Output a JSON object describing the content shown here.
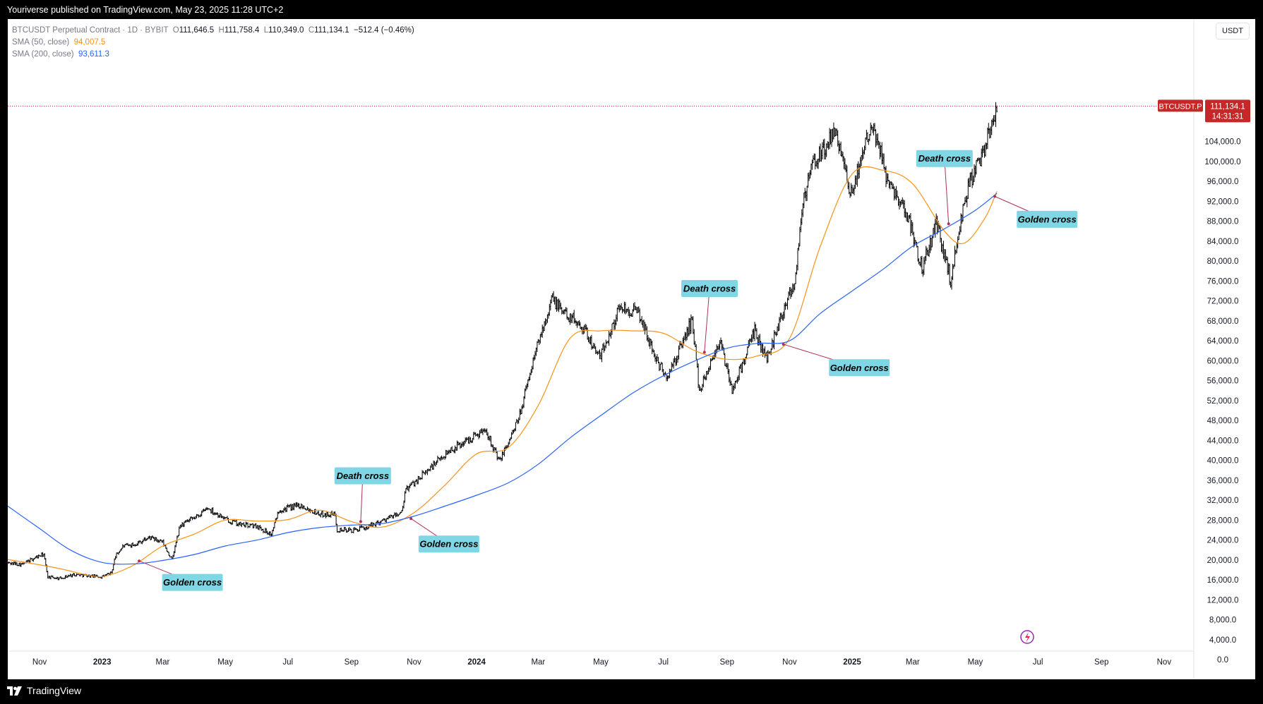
{
  "header": {
    "published": "Youriverse published on TradingView.com, May 23, 2025 11:28 UTC+2"
  },
  "footer": {
    "brand": "TradingView"
  },
  "legend": {
    "symbol": "BTCUSDT Perpetual Contract · 1D · BYBIT",
    "o_label": "O",
    "o": "111,646.5",
    "h_label": "H",
    "h": "111,758.4",
    "l_label": "L",
    "l": "110,349.0",
    "c_label": "C",
    "c": "111,134.1",
    "change": "−512.4 (−0.46%)",
    "sma50_label": "SMA (50, close)",
    "sma50": "94,007.5",
    "sma200_label": "SMA (200, close)",
    "sma200": "93,611.3"
  },
  "currency": "USDT",
  "price_tag": {
    "symbol": "BTCUSDT.P",
    "price": "111,134.1",
    "countdown": "14:31:31"
  },
  "colors": {
    "background": "#ffffff",
    "sma50": "#f7931a",
    "sma200": "#2962ff",
    "candles": "#000000",
    "annotation_box": "#7fd6e4",
    "annotation_line": "#b0305a",
    "price_tag": "#c62828"
  },
  "chart_data": {
    "type": "line",
    "title": "",
    "ylim": [
      0,
      116000
    ],
    "y_ticks": [
      0,
      4000,
      8000,
      12000,
      16000,
      20000,
      24000,
      28000,
      32000,
      36000,
      40000,
      44000,
      48000,
      52000,
      56000,
      60000,
      64000,
      68000,
      72000,
      76000,
      80000,
      84000,
      88000,
      92000,
      96000,
      100000,
      104000
    ],
    "y_tick_labels": [
      "0.0",
      "4,000.0",
      "8,000.0",
      "12,000.0",
      "16,000.0",
      "20,000.0",
      "24,000.0",
      "28,000.0",
      "32,000.0",
      "36,000.0",
      "40,000.0",
      "44,000.0",
      "48,000.0",
      "52,000.0",
      "56,000.0",
      "60,000.0",
      "64,000.0",
      "68,000.0",
      "72,000.0",
      "76,000.0",
      "80,000.0",
      "84,000.0",
      "88,000.0",
      "92,000.0",
      "96,000.0",
      "100,000.0",
      "104,000.0"
    ],
    "xlim": [
      "2022-10-01",
      "2025-11-30"
    ],
    "x_ticks": [
      {
        "date": "2022-11-01",
        "label": "Nov",
        "bold": false
      },
      {
        "date": "2023-01-01",
        "label": "2023",
        "bold": true
      },
      {
        "date": "2023-03-01",
        "label": "Mar",
        "bold": false
      },
      {
        "date": "2023-05-01",
        "label": "May",
        "bold": false
      },
      {
        "date": "2023-07-01",
        "label": "Jul",
        "bold": false
      },
      {
        "date": "2023-09-01",
        "label": "Sep",
        "bold": false
      },
      {
        "date": "2023-11-01",
        "label": "Nov",
        "bold": false
      },
      {
        "date": "2024-01-01",
        "label": "2024",
        "bold": true
      },
      {
        "date": "2024-03-01",
        "label": "Mar",
        "bold": false
      },
      {
        "date": "2024-05-01",
        "label": "May",
        "bold": false
      },
      {
        "date": "2024-07-01",
        "label": "Jul",
        "bold": false
      },
      {
        "date": "2024-09-01",
        "label": "Sep",
        "bold": false
      },
      {
        "date": "2024-11-01",
        "label": "Nov",
        "bold": false
      },
      {
        "date": "2025-01-01",
        "label": "2025",
        "bold": true
      },
      {
        "date": "2025-03-01",
        "label": "Mar",
        "bold": false
      },
      {
        "date": "2025-05-01",
        "label": "May",
        "bold": false
      },
      {
        "date": "2025-07-01",
        "label": "Jul",
        "bold": false
      },
      {
        "date": "2025-09-01",
        "label": "Sep",
        "bold": false
      },
      {
        "date": "2025-11-01",
        "label": "Nov",
        "bold": false
      }
    ],
    "series": [
      {
        "name": "BTCUSDT Perpetual Contract",
        "style": "ohlc-bars",
        "points": [
          [
            "2022-10-01",
            19400
          ],
          [
            "2022-10-15",
            19100
          ],
          [
            "2022-10-29",
            20600
          ],
          [
            "2022-11-05",
            21100
          ],
          [
            "2022-11-09",
            16600
          ],
          [
            "2022-11-20",
            16300
          ],
          [
            "2022-12-05",
            17100
          ],
          [
            "2022-12-20",
            16800
          ],
          [
            "2023-01-01",
            16600
          ],
          [
            "2023-01-10",
            17400
          ],
          [
            "2023-01-14",
            20800
          ],
          [
            "2023-01-21",
            22700
          ],
          [
            "2023-02-01",
            23100
          ],
          [
            "2023-02-16",
            24500
          ],
          [
            "2023-03-01",
            23500
          ],
          [
            "2023-03-10",
            20000
          ],
          [
            "2023-03-18",
            26900
          ],
          [
            "2023-04-01",
            28400
          ],
          [
            "2023-04-14",
            30400
          ],
          [
            "2023-05-01",
            28200
          ],
          [
            "2023-05-15",
            27100
          ],
          [
            "2023-06-01",
            26800
          ],
          [
            "2023-06-15",
            25100
          ],
          [
            "2023-06-22",
            30000
          ],
          [
            "2023-07-13",
            31000
          ],
          [
            "2023-08-01",
            29200
          ],
          [
            "2023-08-16",
            29100
          ],
          [
            "2023-08-18",
            26100
          ],
          [
            "2023-09-01",
            25900
          ],
          [
            "2023-09-15",
            26500
          ],
          [
            "2023-10-01",
            27900
          ],
          [
            "2023-10-20",
            29500
          ],
          [
            "2023-10-24",
            34100
          ],
          [
            "2023-11-10",
            37200
          ],
          [
            "2023-12-05",
            41900
          ],
          [
            "2023-12-20",
            43700
          ],
          [
            "2024-01-10",
            46300
          ],
          [
            "2024-01-23",
            39700
          ],
          [
            "2024-02-10",
            47700
          ],
          [
            "2024-02-28",
            62300
          ],
          [
            "2024-03-14",
            72500
          ],
          [
            "2024-03-25",
            69900
          ],
          [
            "2024-04-13",
            67100
          ],
          [
            "2024-04-30",
            60500
          ],
          [
            "2024-05-20",
            71000
          ],
          [
            "2024-06-07",
            69500
          ],
          [
            "2024-06-24",
            60200
          ],
          [
            "2024-07-05",
            56500
          ],
          [
            "2024-07-29",
            68200
          ],
          [
            "2024-08-05",
            54000
          ],
          [
            "2024-08-25",
            64200
          ],
          [
            "2024-09-06",
            53900
          ],
          [
            "2024-09-28",
            65900
          ],
          [
            "2024-10-10",
            60300
          ],
          [
            "2024-10-29",
            72300
          ],
          [
            "2024-11-06",
            75800
          ],
          [
            "2024-11-13",
            90400
          ],
          [
            "2024-11-22",
            98800
          ],
          [
            "2024-12-17",
            106000
          ],
          [
            "2024-12-30",
            92500
          ],
          [
            "2025-01-20",
            108500
          ],
          [
            "2025-02-03",
            97500
          ],
          [
            "2025-02-25",
            88700
          ],
          [
            "2025-03-10",
            78500
          ],
          [
            "2025-03-24",
            87500
          ],
          [
            "2025-04-07",
            76300
          ],
          [
            "2025-04-22",
            93500
          ],
          [
            "2025-05-10",
            103000
          ],
          [
            "2025-05-22",
            111134
          ]
        ]
      },
      {
        "name": "SMA (50, close)",
        "points": [
          [
            "2022-10-01",
            20100
          ],
          [
            "2022-11-15",
            18500
          ],
          [
            "2022-12-20",
            16900
          ],
          [
            "2023-01-05",
            16800
          ],
          [
            "2023-02-01",
            19000
          ],
          [
            "2023-03-01",
            22800
          ],
          [
            "2023-04-01",
            25200
          ],
          [
            "2023-05-01",
            28000
          ],
          [
            "2023-06-01",
            27800
          ],
          [
            "2023-07-01",
            28100
          ],
          [
            "2023-08-01",
            30000
          ],
          [
            "2023-09-01",
            27700
          ],
          [
            "2023-10-01",
            26600
          ],
          [
            "2023-11-01",
            29500
          ],
          [
            "2023-12-01",
            35000
          ],
          [
            "2024-01-01",
            41300
          ],
          [
            "2024-02-01",
            42600
          ],
          [
            "2024-03-01",
            51000
          ],
          [
            "2024-04-01",
            64500
          ],
          [
            "2024-05-01",
            66000
          ],
          [
            "2024-06-01",
            66000
          ],
          [
            "2024-07-01",
            65500
          ],
          [
            "2024-08-01",
            62000
          ],
          [
            "2024-09-01",
            60300
          ],
          [
            "2024-10-01",
            61000
          ],
          [
            "2024-11-01",
            64500
          ],
          [
            "2024-12-01",
            83000
          ],
          [
            "2025-01-01",
            97500
          ],
          [
            "2025-02-01",
            98200
          ],
          [
            "2025-03-01",
            95500
          ],
          [
            "2025-04-01",
            86000
          ],
          [
            "2025-04-20",
            83600
          ],
          [
            "2025-05-10",
            88500
          ],
          [
            "2025-05-22",
            94007
          ]
        ]
      },
      {
        "name": "SMA (200, close)",
        "points": [
          [
            "2022-10-01",
            30800
          ],
          [
            "2022-11-01",
            26300
          ],
          [
            "2022-12-01",
            22000
          ],
          [
            "2023-01-01",
            19500
          ],
          [
            "2023-02-01",
            19200
          ],
          [
            "2023-03-01",
            19900
          ],
          [
            "2023-04-01",
            21100
          ],
          [
            "2023-05-01",
            22800
          ],
          [
            "2023-06-01",
            24000
          ],
          [
            "2023-07-01",
            25500
          ],
          [
            "2023-08-01",
            26500
          ],
          [
            "2023-09-01",
            27000
          ],
          [
            "2023-10-01",
            27300
          ],
          [
            "2023-11-01",
            28800
          ],
          [
            "2023-12-01",
            30800
          ],
          [
            "2024-01-01",
            33000
          ],
          [
            "2024-02-01",
            35500
          ],
          [
            "2024-03-01",
            39200
          ],
          [
            "2024-04-01",
            44500
          ],
          [
            "2024-05-01",
            49000
          ],
          [
            "2024-06-01",
            53500
          ],
          [
            "2024-07-01",
            57000
          ],
          [
            "2024-08-01",
            60000
          ],
          [
            "2024-09-01",
            62500
          ],
          [
            "2024-10-01",
            63500
          ],
          [
            "2024-11-01",
            64000
          ],
          [
            "2024-12-01",
            69500
          ],
          [
            "2025-01-01",
            74000
          ],
          [
            "2025-02-01",
            78500
          ],
          [
            "2025-03-01",
            83000
          ],
          [
            "2025-04-01",
            86500
          ],
          [
            "2025-05-01",
            90200
          ],
          [
            "2025-05-22",
            93611
          ]
        ]
      }
    ],
    "annotations": [
      {
        "label": "Golden cross",
        "date": "2023-02-06",
        "value": 19800,
        "box_date": "2023-03-30",
        "box_value": 15500
      },
      {
        "label": "Death cross",
        "date": "2023-09-10",
        "value": 27700,
        "box_date": "2023-09-12",
        "box_value": 36900
      },
      {
        "label": "Golden cross",
        "date": "2023-10-29",
        "value": 28300,
        "box_date": "2023-12-05",
        "box_value": 23200
      },
      {
        "label": "Death cross",
        "date": "2024-08-10",
        "value": 61700,
        "box_date": "2024-08-15",
        "box_value": 74500
      },
      {
        "label": "Golden cross",
        "date": "2024-10-26",
        "value": 63300,
        "box_date": "2025-01-08",
        "box_value": 58600
      },
      {
        "label": "Death cross",
        "date": "2025-04-05",
        "value": 87500,
        "box_date": "2025-04-01",
        "box_value": 100600
      },
      {
        "label": "Golden cross",
        "date": "2025-05-20",
        "value": 93000,
        "box_date": "2025-07-10",
        "box_value": 88400
      }
    ]
  }
}
